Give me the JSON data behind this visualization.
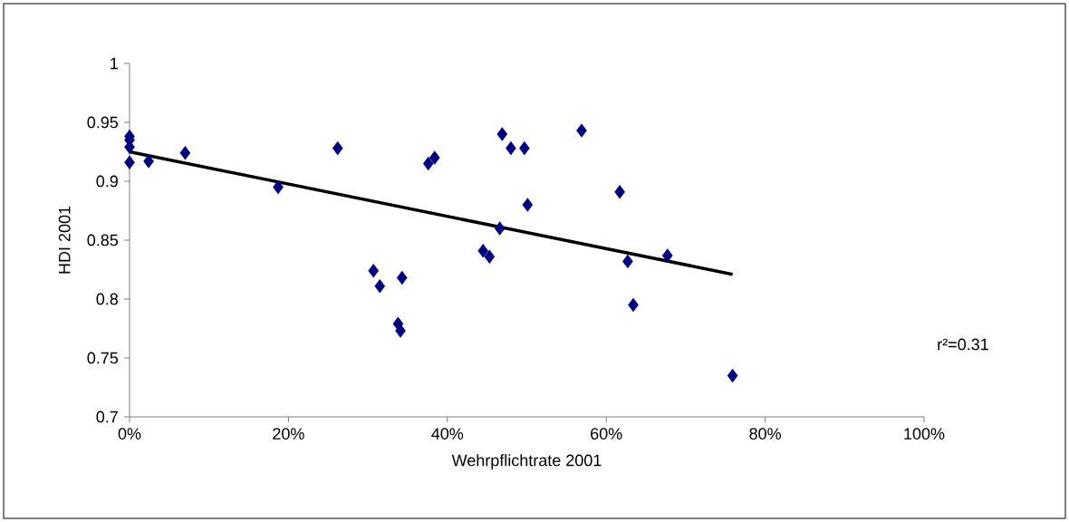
{
  "chart_data": {
    "type": "scatter",
    "xlabel": "Wehrpflichtrate 2001",
    "ylabel": "HDI 2001",
    "annotations": [
      "r²=0.31"
    ],
    "xlim": [
      0,
      100
    ],
    "xticks": [
      {
        "value": 0,
        "label": "0%"
      },
      {
        "value": 20,
        "label": "20%"
      },
      {
        "value": 40,
        "label": "40%"
      },
      {
        "value": 60,
        "label": "60%"
      },
      {
        "value": 80,
        "label": "80%"
      },
      {
        "value": 100,
        "label": "100%"
      }
    ],
    "ylim": [
      0.7,
      1
    ],
    "yticks": [
      0.7,
      0.75,
      0.8,
      0.85,
      0.9,
      0.95,
      1
    ],
    "grid": false,
    "series": [
      {
        "marker": "diamond",
        "color": "#000080",
        "x": [
          0,
          0,
          0,
          0,
          2.4,
          7.0,
          18.7,
          26.2,
          30.7,
          31.5,
          34.3,
          37.6,
          38.4,
          33.8,
          34.1,
          44.5,
          45.3,
          46.6,
          46.9,
          48.0,
          49.7,
          50.1,
          56.9,
          61.7,
          62.7,
          63.4,
          67.7,
          75.9
        ],
        "values": [
          0.938,
          0.935,
          0.929,
          0.916,
          0.917,
          0.924,
          0.895,
          0.928,
          0.824,
          0.811,
          0.818,
          0.915,
          0.92,
          0.779,
          0.773,
          0.841,
          0.836,
          0.86,
          0.94,
          0.928,
          0.928,
          0.88,
          0.943,
          0.891,
          0.832,
          0.795,
          0.837,
          0.735
        ]
      },
      {
        "type": "line",
        "marker": "none",
        "color": "#000000",
        "x": [
          0,
          75.9
        ],
        "values": [
          0.925,
          0.821
        ]
      }
    ]
  }
}
